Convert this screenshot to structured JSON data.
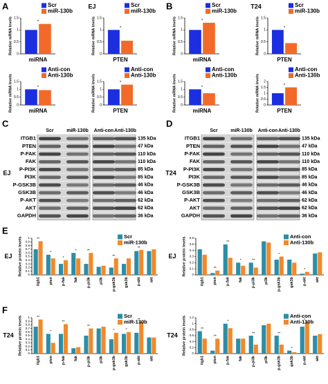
{
  "panels": [
    {
      "letter": "A",
      "title": "EJ"
    },
    {
      "letter": "B",
      "title": "T24"
    },
    {
      "letter": "C",
      "cell_line": "EJ",
      "lanes": [
        "Scr",
        "miR-130b",
        "Anti-con",
        "Anti-130b"
      ],
      "rows": [
        {
          "protein": "ITGB1",
          "size": "135 kDa"
        },
        {
          "protein": "PTEN",
          "size": "47 kDa"
        },
        {
          "protein": "P-FAK",
          "size": "110 kDa"
        },
        {
          "protein": "FAK",
          "size": "110 kDa"
        },
        {
          "protein": "P-PI3K",
          "size": "85 kDa"
        },
        {
          "protein": "PI3K",
          "size": "85 kDa"
        },
        {
          "protein": "P-GSK3B",
          "size": "46 kDa"
        },
        {
          "protein": "GSK3B",
          "size": "46 kDa"
        },
        {
          "protein": "P-AKT",
          "size": "62 kDa"
        },
        {
          "protein": "AKT",
          "size": "62 kDa"
        },
        {
          "protein": "GAPDH",
          "size": "36 kDa"
        }
      ]
    },
    {
      "letter": "D",
      "cell_line": "T24",
      "lanes": [
        "Scr",
        "miR-130b",
        "Anti-con",
        "Anti-130b"
      ],
      "rows": [
        {
          "protein": "ITGB1",
          "size": "135 kDa"
        },
        {
          "protein": "PTEN",
          "size": "47 kDa"
        },
        {
          "protein": "P-FAK",
          "size": "110 kDa"
        },
        {
          "protein": "FAK",
          "size": "110 kDa"
        },
        {
          "protein": "P-PI3K",
          "size": "85 kDa"
        },
        {
          "protein": "PI3K",
          "size": "85 kDa"
        },
        {
          "protein": "P-GSK3B",
          "size": "46 kDa"
        },
        {
          "protein": "GSK3B",
          "size": "46 kDa"
        },
        {
          "protein": "P-AKT",
          "size": "62 kDa"
        },
        {
          "protein": "AKT",
          "size": "62 kDa"
        },
        {
          "protein": "GAPDH",
          "size": "36 kDa"
        }
      ]
    },
    {
      "letter": "E"
    },
    {
      "letter": "F"
    }
  ],
  "chart_data": [
    {
      "type": "bar",
      "y_label": "Relative mRNA levels",
      "categories": [
        "miRNA"
      ],
      "significance": [
        "*"
      ],
      "ylim": [
        0,
        1.5
      ],
      "yticks": [
        0,
        0.5,
        1,
        1.5
      ],
      "series": [
        {
          "name": "Scr",
          "color": "#1b2ee0",
          "values": [
            1.0
          ]
        },
        {
          "name": "miR-130b",
          "color": "#f26a2a",
          "values": [
            1.25
          ]
        }
      ]
    },
    {
      "type": "bar",
      "y_label": "Relative mRNA levels",
      "categories": [
        "PTEN"
      ],
      "significance": [
        "*"
      ],
      "ylim": [
        0,
        1.5
      ],
      "yticks": [
        0,
        0.5,
        1,
        1.5
      ],
      "series": [
        {
          "name": "Scr",
          "color": "#1b2ee0",
          "values": [
            1.0
          ]
        },
        {
          "name": "miR-130b",
          "color": "#f26a2a",
          "values": [
            0.55
          ]
        }
      ]
    },
    {
      "type": "bar",
      "y_label": "Relative mRNA levels",
      "categories": [
        "miRNA"
      ],
      "significance": [
        "*"
      ],
      "ylim": [
        0,
        1.5
      ],
      "yticks": [
        0,
        0.5,
        1,
        1.5
      ],
      "series": [
        {
          "name": "Anti-con",
          "color": "#1b2ee0",
          "values": [
            1.0
          ]
        },
        {
          "name": "Anti-130b",
          "color": "#f26a2a",
          "values": [
            0.95
          ]
        }
      ]
    },
    {
      "type": "bar",
      "y_label": "Relative mRNA levels",
      "categories": [
        "PTEN"
      ],
      "significance": [
        "*"
      ],
      "ylim": [
        0,
        1.5
      ],
      "yticks": [
        0,
        0.5,
        1,
        1.5
      ],
      "series": [
        {
          "name": "Anti-con",
          "color": "#1b2ee0",
          "values": [
            1.0
          ]
        },
        {
          "name": "Anti-130b",
          "color": "#f26a2a",
          "values": [
            1.3
          ]
        }
      ]
    },
    {
      "type": "bar",
      "y_label": "Relative mRNA levels",
      "categories": [
        "miRNA"
      ],
      "significance": [
        "*"
      ],
      "ylim": [
        0,
        1.5
      ],
      "yticks": [
        0,
        0.5,
        1,
        1.5
      ],
      "series": [
        {
          "name": "Scr",
          "color": "#1b2ee0",
          "values": [
            1.0
          ]
        },
        {
          "name": "miR-130b",
          "color": "#f26a2a",
          "values": [
            1.3
          ]
        }
      ]
    },
    {
      "type": "bar",
      "y_label": "Relative mRNA levels",
      "categories": [
        "PTEN"
      ],
      "significance": [
        "*"
      ],
      "ylim": [
        0,
        1.5
      ],
      "yticks": [
        0,
        0.5,
        1,
        1.5
      ],
      "series": [
        {
          "name": "Scr",
          "color": "#1b2ee0",
          "values": [
            1.0
          ]
        },
        {
          "name": "miR-130b",
          "color": "#f26a2a",
          "values": [
            0.45
          ]
        }
      ]
    },
    {
      "type": "bar",
      "y_label": "Relative mRNA levels",
      "categories": [
        "miRNA"
      ],
      "significance": [
        "*"
      ],
      "ylim": [
        0,
        1.5
      ],
      "yticks": [
        0,
        0.5,
        1,
        1.5
      ],
      "series": [
        {
          "name": "Anti-con",
          "color": "#1b2ee0",
          "values": [
            1.0
          ]
        },
        {
          "name": "Anti-130b",
          "color": "#f26a2a",
          "values": [
            0.75
          ]
        }
      ]
    },
    {
      "type": "bar",
      "y_label": "Relative mRNA levels",
      "categories": [
        "PTEN"
      ],
      "significance": [
        "*"
      ],
      "ylim": [
        0,
        2
      ],
      "yticks": [
        0,
        0.5,
        1,
        1.5,
        2
      ],
      "series": [
        {
          "name": "Anti-con",
          "color": "#1b2ee0",
          "values": [
            1.0
          ]
        },
        {
          "name": "Anti-130b",
          "color": "#f26a2a",
          "values": [
            1.5
          ]
        }
      ]
    },
    {
      "type": "bar",
      "title": "EJ",
      "y_label": "Relative protein levels",
      "categories": [
        "itgb1",
        "pten",
        "p-fak",
        "fak",
        "p-pi3k",
        "pi3k",
        "p-gsk3b",
        "gsk3b",
        "p-akt",
        "akt"
      ],
      "significance": [
        "**",
        "*",
        "*",
        "*",
        "**",
        null,
        "**",
        null,
        "**",
        null
      ],
      "ylim": [
        0,
        1
      ],
      "yticks": [
        0,
        0.1,
        0.2,
        0.3,
        0.4,
        0.5,
        0.6,
        0.7,
        0.8,
        0.9,
        1
      ],
      "series": [
        {
          "name": "Scr",
          "color": "#2b8ea8",
          "values": [
            0.7,
            0.55,
            0.3,
            0.6,
            0.3,
            0.22,
            0.2,
            0.3,
            0.65,
            0.65
          ]
        },
        {
          "name": "miR-130b",
          "color": "#f2892a",
          "values": [
            0.92,
            0.45,
            0.4,
            0.45,
            0.6,
            0.25,
            0.45,
            0.45,
            0.68,
            0.7
          ]
        }
      ]
    },
    {
      "type": "bar",
      "title": "EJ",
      "y_label": "Relative protein levels",
      "categories": [
        "itgb1",
        "pten",
        "p-fak",
        "fak",
        "p-pi3k",
        "pi3k",
        "p-gsk3b",
        "gsk3b",
        "p-akt",
        "akt"
      ],
      "significance": [
        null,
        "**",
        "**",
        "*",
        "**",
        null,
        "*",
        null,
        "*",
        null
      ],
      "ylim": [
        0,
        0.6
      ],
      "yticks": [
        0,
        0.1,
        0.2,
        0.3,
        0.4,
        0.5,
        0.6
      ],
      "series": [
        {
          "name": "Anti-con",
          "color": "#2b8ea8",
          "values": [
            0.42,
            0.03,
            0.5,
            0.2,
            0.2,
            0.55,
            0.25,
            0.25,
            0.02,
            0.35
          ]
        },
        {
          "name": "Anti-130b",
          "color": "#f2892a",
          "values": [
            0.33,
            0.07,
            0.28,
            0.15,
            0.12,
            0.53,
            0.3,
            0.2,
            0.05,
            0.37
          ]
        }
      ]
    },
    {
      "type": "bar",
      "title": "T24",
      "y_label": "Relative protein levels",
      "categories": [
        "itgb1",
        "pten",
        "p-fak",
        "fak",
        "p-pi3k",
        "pi3k",
        "p-gsk3b",
        "gsk3b",
        "p-akt",
        "akt"
      ],
      "significance": [
        "**",
        "*",
        "**",
        null,
        "**",
        null,
        "*",
        "*",
        "**",
        null
      ],
      "ylim": [
        0,
        1
      ],
      "yticks": [
        0,
        0.1,
        0.2,
        0.3,
        0.4,
        0.5,
        0.6,
        0.7,
        0.8,
        0.9,
        1
      ],
      "series": [
        {
          "name": "Scr",
          "color": "#2b8ea8",
          "values": [
            0.75,
            0.55,
            0.55,
            0.15,
            0.5,
            0.7,
            0.4,
            0.55,
            0.58,
            0.45
          ]
        },
        {
          "name": "miR-130b",
          "color": "#f2892a",
          "values": [
            0.95,
            0.3,
            0.82,
            0.18,
            0.7,
            0.75,
            0.58,
            0.6,
            0.88,
            0.45
          ]
        }
      ]
    },
    {
      "type": "bar",
      "title": "T24",
      "y_label": "Relative protein levels",
      "categories": [
        "itgb1",
        "pten",
        "p-fak",
        "fak",
        "p-pi3k",
        "pi3k",
        "p-gsk3b",
        "gsk3b",
        "p-akt",
        "akt"
      ],
      "significance": [
        "**",
        "**",
        "*",
        null,
        "**",
        null,
        "**",
        "*",
        "*",
        null
      ],
      "ylim": [
        0,
        1.2
      ],
      "yticks": [
        0,
        0.2,
        0.4,
        0.6,
        0.8,
        1,
        1.2
      ],
      "series": [
        {
          "name": "Anti-con",
          "color": "#2b8ea8",
          "values": [
            0.75,
            0.1,
            1.0,
            0.5,
            0.6,
            0.95,
            0.6,
            0.1,
            0.9,
            0.6
          ]
        },
        {
          "name": "Anti-130b",
          "color": "#f2892a",
          "values": [
            0.5,
            0.5,
            0.85,
            0.5,
            0.3,
            1.0,
            0.3,
            0.05,
            1.05,
            0.65
          ]
        }
      ]
    }
  ]
}
